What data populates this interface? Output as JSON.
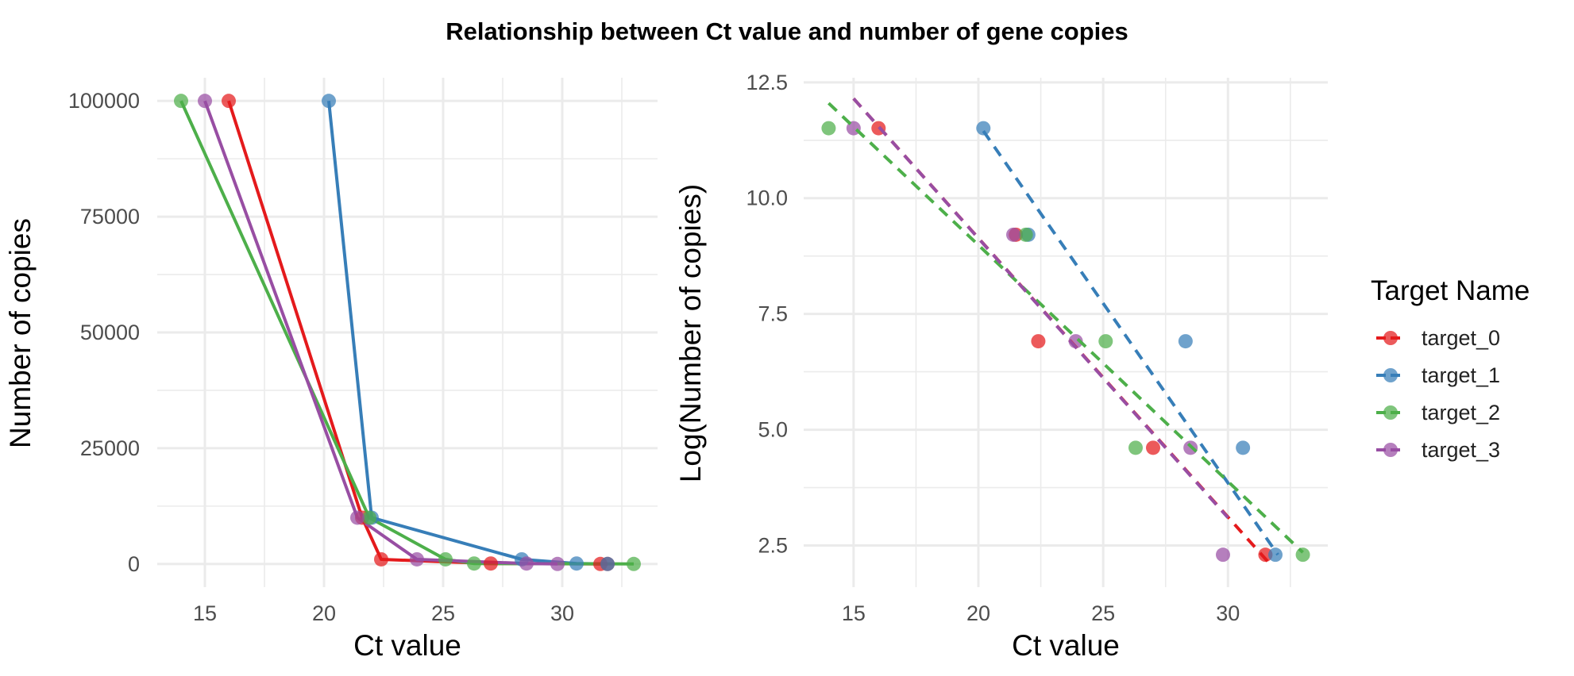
{
  "title": "Relationship between Ct value and number of gene copies",
  "colors": {
    "target_0": "#E41A1C",
    "target_1": "#377EB8",
    "target_2": "#4DAF4A",
    "target_3": "#984EA3",
    "grid": "#EBEBEB"
  },
  "chart_data": [
    {
      "type": "line",
      "xlabel": "Ct value",
      "ylabel": "Number of copies",
      "xlim": [
        13,
        34
      ],
      "ylim": [
        -5000,
        105000
      ],
      "xticks": [
        15,
        20,
        25,
        30
      ],
      "xtick_labels": [
        "15",
        "20",
        "25",
        "30"
      ],
      "yticks": [
        0,
        25000,
        50000,
        75000,
        100000
      ],
      "ytick_labels": [
        "0",
        "25000",
        "50000",
        "75000",
        "100000"
      ],
      "grid": true,
      "series": [
        {
          "name": "target_0",
          "color": "#E41A1C",
          "line": "solid",
          "points": [
            [
              16.0,
              100000
            ],
            [
              21.6,
              10000
            ],
            [
              22.4,
              1000
            ],
            [
              27.0,
              100
            ],
            [
              31.6,
              10
            ],
            [
              31.9,
              1
            ]
          ]
        },
        {
          "name": "target_1",
          "color": "#377EB8",
          "line": "solid",
          "points": [
            [
              20.2,
              100000
            ],
            [
              22.0,
              10000
            ],
            [
              28.3,
              1000
            ],
            [
              30.6,
              100
            ],
            [
              31.9,
              10
            ]
          ]
        },
        {
          "name": "target_2",
          "color": "#4DAF4A",
          "line": "solid",
          "points": [
            [
              14.0,
              100000
            ],
            [
              21.9,
              10000
            ],
            [
              25.1,
              1000
            ],
            [
              26.3,
              100
            ],
            [
              33.0,
              10
            ]
          ]
        },
        {
          "name": "target_3",
          "color": "#984EA3",
          "line": "solid",
          "points": [
            [
              15.0,
              100000
            ],
            [
              21.4,
              10000
            ],
            [
              23.9,
              1000
            ],
            [
              28.5,
              100
            ],
            [
              29.8,
              10
            ]
          ]
        }
      ]
    },
    {
      "type": "scatter",
      "xlabel": "Ct value",
      "ylabel": "Log(Number of copies)",
      "xlim": [
        13,
        34
      ],
      "ylim": [
        1.6,
        12.6
      ],
      "xticks": [
        15,
        20,
        25,
        30
      ],
      "xtick_labels": [
        "15",
        "20",
        "25",
        "30"
      ],
      "yticks": [
        2.5,
        5.0,
        7.5,
        10.0,
        12.5
      ],
      "ytick_labels": [
        "2.5",
        "5.0",
        "7.5",
        "10.0",
        "12.5"
      ],
      "grid": true,
      "legend": {
        "title": "Target Name",
        "position": "right"
      },
      "series": [
        {
          "name": "target_0",
          "color": "#E41A1C",
          "points": [
            [
              16.0,
              11.51
            ],
            [
              21.5,
              9.21
            ],
            [
              22.4,
              6.91
            ],
            [
              27.0,
              4.61
            ],
            [
              31.5,
              2.3
            ]
          ],
          "fit": [
            [
              15.0,
              12.15
            ],
            [
              31.6,
              2.15
            ]
          ]
        },
        {
          "name": "target_1",
          "color": "#377EB8",
          "points": [
            [
              20.2,
              11.51
            ],
            [
              22.0,
              9.21
            ],
            [
              28.3,
              6.91
            ],
            [
              30.6,
              4.61
            ],
            [
              31.9,
              2.3
            ]
          ],
          "fit": [
            [
              20.2,
              11.45
            ],
            [
              32.0,
              2.3
            ]
          ]
        },
        {
          "name": "target_2",
          "color": "#4DAF4A",
          "points": [
            [
              14.0,
              11.51
            ],
            [
              21.9,
              9.21
            ],
            [
              25.1,
              6.91
            ],
            [
              26.3,
              4.61
            ],
            [
              33.0,
              2.3
            ]
          ],
          "fit": [
            [
              14.0,
              12.05
            ],
            [
              33.0,
              2.35
            ]
          ]
        },
        {
          "name": "target_3",
          "color": "#984EA3",
          "points": [
            [
              15.0,
              11.51
            ],
            [
              21.4,
              9.21
            ],
            [
              23.9,
              6.91
            ],
            [
              28.5,
              4.61
            ],
            [
              29.8,
              2.3
            ]
          ],
          "fit": [
            [
              15.0,
              12.15
            ],
            [
              30.0,
              3.1
            ]
          ]
        }
      ]
    }
  ]
}
